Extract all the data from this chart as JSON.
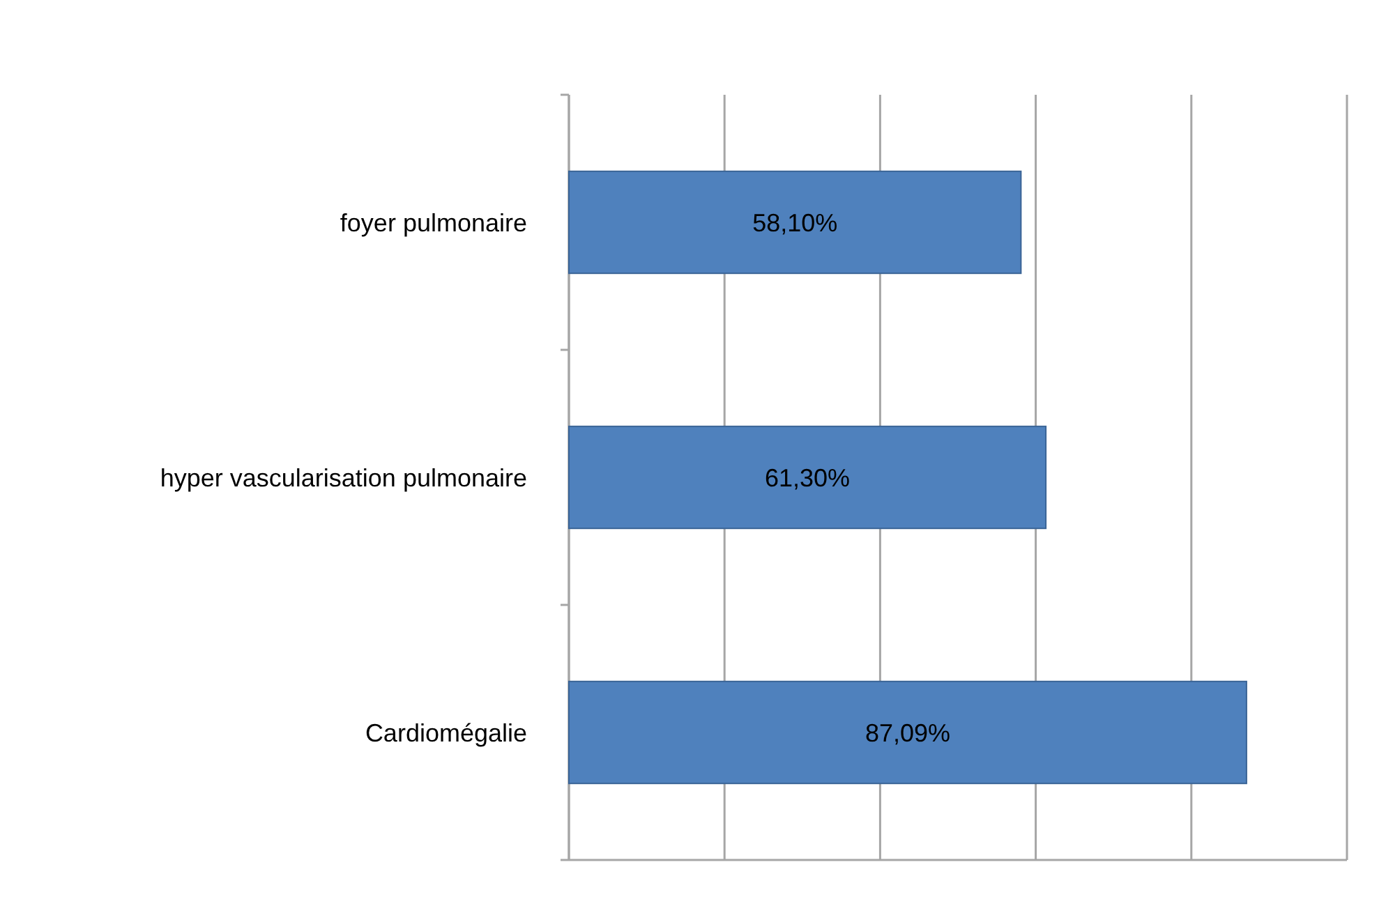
{
  "chart_data": {
    "type": "bar",
    "orientation": "horizontal",
    "categories": [
      "foyer pulmonaire",
      "hyper vascularisation pulmonaire",
      "Cardiomégalie"
    ],
    "values": [
      58.1,
      61.3,
      87.09
    ],
    "value_labels": [
      "58,10%",
      "61,30%",
      "87,09%"
    ],
    "color": "#4f81bd",
    "xlim": [
      0,
      100
    ],
    "xticks": [
      {
        "value": 0,
        "label": null
      },
      {
        "value": 20,
        "label": null
      },
      {
        "value": 40,
        "label": null
      },
      {
        "value": 60,
        "label": null
      },
      {
        "value": 80,
        "label": null
      },
      {
        "value": 100,
        "label": null
      }
    ],
    "grid": "x",
    "tick_labels": "y"
  }
}
